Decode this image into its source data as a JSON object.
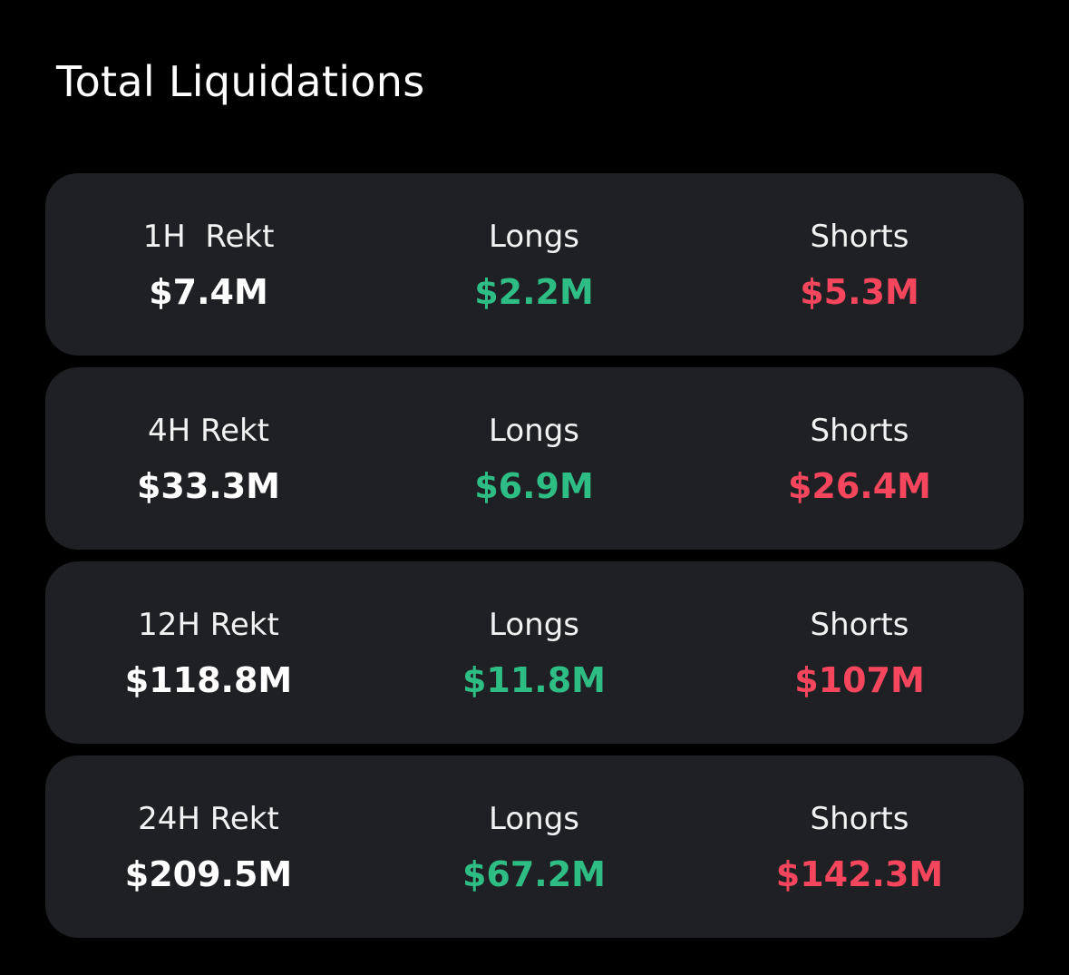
{
  "title": "Total Liquidations",
  "colors": {
    "background": "#000000",
    "card": "#1e2023",
    "longs": "#2ebd85",
    "shorts": "#f6465d",
    "text": "#ffffff"
  },
  "rows": [
    {
      "period_label": "1H  Rekt",
      "total": "$7.4M",
      "longs_label": "Longs",
      "longs": "$2.2M",
      "shorts_label": "Shorts",
      "shorts": "$5.3M"
    },
    {
      "period_label": "4H Rekt",
      "total": "$33.3M",
      "longs_label": "Longs",
      "longs": "$6.9M",
      "shorts_label": "Shorts",
      "shorts": "$26.4M"
    },
    {
      "period_label": "12H Rekt",
      "total": "$118.8M",
      "longs_label": "Longs",
      "longs": "$11.8M",
      "shorts_label": "Shorts",
      "shorts": "$107M"
    },
    {
      "period_label": "24H Rekt",
      "total": "$209.5M",
      "longs_label": "Longs",
      "longs": "$67.2M",
      "shorts_label": "Shorts",
      "shorts": "$142.3M"
    }
  ]
}
